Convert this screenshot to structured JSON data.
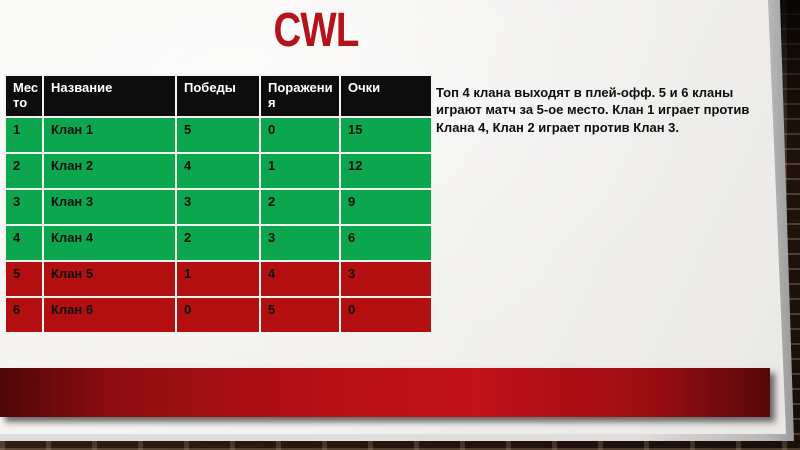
{
  "slide": {
    "title": "CWL",
    "note": "Топ 4 клана выходят в плей-офф. 5 и 6 кланы играют матч за 5-ое место. Клан 1 играет против Клана 4, Клан 2 играет против Клан 3."
  },
  "table": {
    "headers": [
      "Место",
      "Название",
      "Победы",
      "Поражения",
      "Очки"
    ],
    "rows": [
      {
        "place": "1",
        "name": "Клан 1",
        "wins": "5",
        "losses": "0",
        "points": "15",
        "status": "playoff"
      },
      {
        "place": "2",
        "name": "Клан 2",
        "wins": "4",
        "losses": "1",
        "points": "12",
        "status": "playoff"
      },
      {
        "place": "3",
        "name": "Клан 3",
        "wins": "3",
        "losses": "2",
        "points": "9",
        "status": "playoff"
      },
      {
        "place": "4",
        "name": "Клан 4",
        "wins": "2",
        "losses": "3",
        "points": "6",
        "status": "playoff"
      },
      {
        "place": "5",
        "name": "Клан 5",
        "wins": "1",
        "losses": "4",
        "points": "3",
        "status": "eliminated"
      },
      {
        "place": "6",
        "name": "Клан 6",
        "wins": "0",
        "losses": "5",
        "points": "0",
        "status": "eliminated"
      }
    ]
  },
  "colors": {
    "title_red": "#b5121b",
    "header_bg": "#0d0d0d",
    "row_green": "#0ca64e",
    "row_red": "#b30f10",
    "bar_red": "#b80f16",
    "paper": "#f2f1ef"
  }
}
